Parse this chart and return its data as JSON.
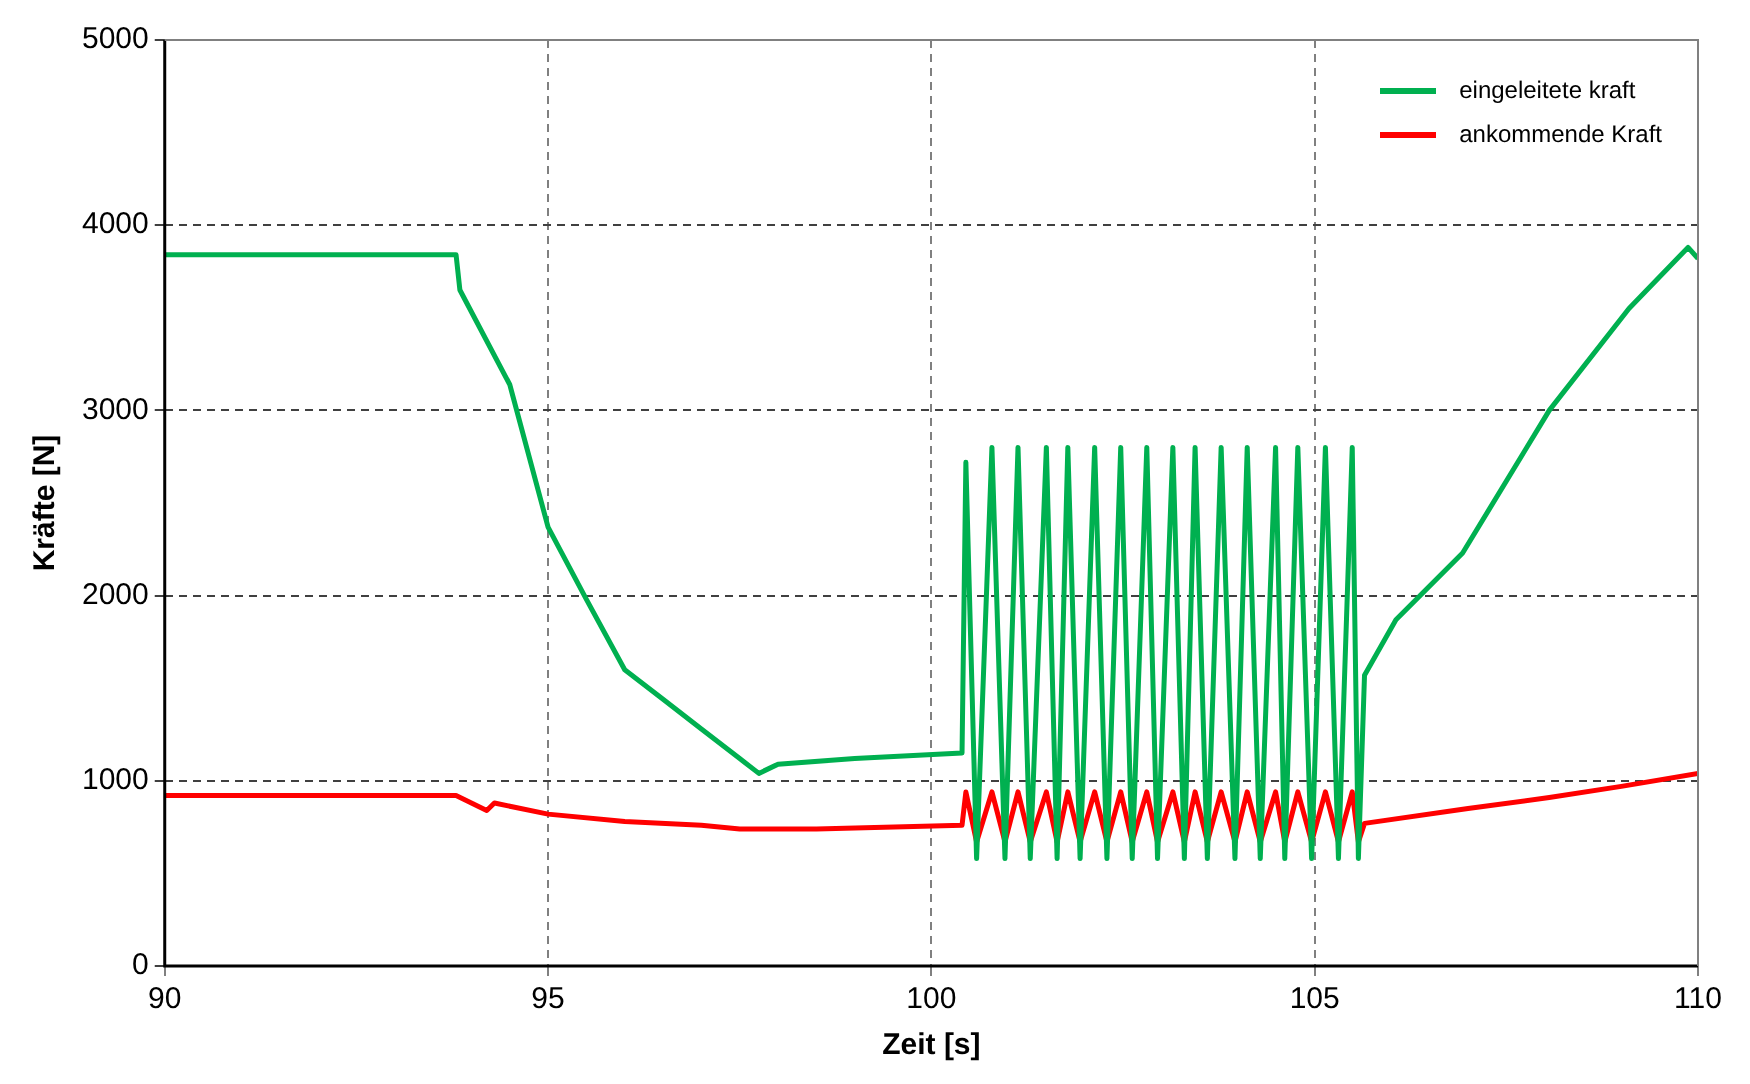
{
  "chart_data": {
    "type": "line",
    "xlabel": "Zeit [s]",
    "ylabel": "Kräfte [N]",
    "xlim": [
      90,
      110
    ],
    "xticks": [
      90,
      95,
      100,
      105,
      110
    ],
    "ylim": [
      0,
      5000
    ],
    "yticks": [
      0,
      1000,
      2000,
      3000,
      4000,
      5000
    ],
    "grid": true,
    "legend": "top right",
    "marker": "none",
    "line_style": "solid",
    "series": [
      {
        "name": "eingeleitete kraft",
        "color": "#00b050",
        "x": [
          90,
          93.8,
          93.85,
          94.5,
          95,
          95.5,
          96,
          96.5,
          97,
          97.5,
          97.75,
          98,
          99,
          100.4,
          100.45,
          100.59,
          100.79,
          100.96,
          101.13,
          101.29,
          101.5,
          101.64,
          101.78,
          101.94,
          102.13,
          102.29,
          102.47,
          102.62,
          102.81,
          102.95,
          103.15,
          103.3,
          103.44,
          103.6,
          103.78,
          103.96,
          104.12,
          104.29,
          104.49,
          104.61,
          104.78,
          104.96,
          105.14,
          105.31,
          105.49,
          105.57,
          105.65,
          106.06,
          106.93,
          108.06,
          109.1,
          109.87,
          110
        ],
        "values": [
          3840,
          3840,
          3650,
          3140,
          2370,
          1980,
          1600,
          1440,
          1280,
          1120,
          1040,
          1090,
          1120,
          1150,
          2720,
          580,
          2800,
          580,
          2800,
          580,
          2800,
          580,
          2800,
          580,
          2800,
          580,
          2800,
          580,
          2800,
          580,
          2800,
          580,
          2800,
          580,
          2800,
          580,
          2800,
          580,
          2800,
          580,
          2800,
          580,
          2800,
          580,
          2800,
          580,
          1570,
          1870,
          2230,
          3000,
          3550,
          3880,
          3820
        ]
      },
      {
        "name": "ankommende Kraft",
        "color": "#ff0000",
        "x": [
          90,
          93.6,
          93.8,
          94,
          94.2,
          94.3,
          95,
          96,
          97,
          97.5,
          98.5,
          100.4,
          100.45,
          100.59,
          100.79,
          100.96,
          101.13,
          101.29,
          101.5,
          101.64,
          101.78,
          101.94,
          102.13,
          102.29,
          102.47,
          102.62,
          102.81,
          102.95,
          103.15,
          103.3,
          103.44,
          103.6,
          103.78,
          103.96,
          104.12,
          104.29,
          104.49,
          104.61,
          104.78,
          104.96,
          105.14,
          105.31,
          105.49,
          105.57,
          105.65,
          107,
          108.06,
          109,
          110
        ],
        "values": [
          920,
          920,
          920,
          880,
          840,
          880,
          820,
          780,
          760,
          740,
          740,
          760,
          940,
          670,
          940,
          670,
          940,
          670,
          940,
          670,
          940,
          670,
          940,
          670,
          940,
          670,
          940,
          670,
          940,
          670,
          940,
          670,
          940,
          670,
          940,
          670,
          940,
          670,
          940,
          670,
          940,
          670,
          940,
          670,
          770,
          850,
          910,
          970,
          1040
        ]
      }
    ]
  }
}
